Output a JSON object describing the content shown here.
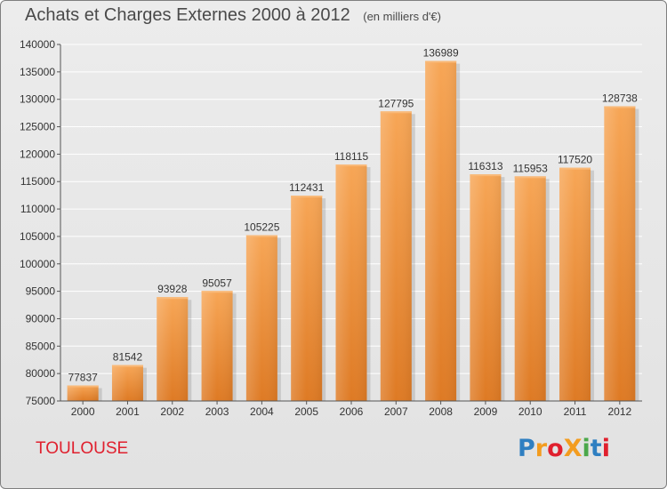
{
  "title": "Achats et Charges Externes 2000 à 2012",
  "unit_note": "(en milliers d'€)",
  "city": "TOULOUSE",
  "logo": "ProXiti",
  "colors": {
    "bar_top": "#f7a656",
    "bar_bottom": "#de7a24",
    "city": "#e0202e",
    "grid": "#ffffff",
    "axis": "#555555"
  },
  "chart_data": {
    "type": "bar",
    "title": "Achats et Charges Externes 2000 à 2012",
    "xlabel": "",
    "ylabel": "",
    "categories": [
      "2000",
      "2001",
      "2002",
      "2003",
      "2004",
      "2005",
      "2006",
      "2007",
      "2008",
      "2009",
      "2010",
      "2011",
      "2012"
    ],
    "values": [
      77837,
      81542,
      93928,
      95057,
      105225,
      112431,
      118115,
      127795,
      136989,
      116313,
      115953,
      117520,
      128738
    ],
    "ylim": [
      75000,
      140000
    ],
    "yticks": [
      75000,
      80000,
      85000,
      90000,
      95000,
      100000,
      105000,
      110000,
      115000,
      120000,
      125000,
      130000,
      135000,
      140000
    ],
    "grid": true,
    "data_labels": true
  }
}
